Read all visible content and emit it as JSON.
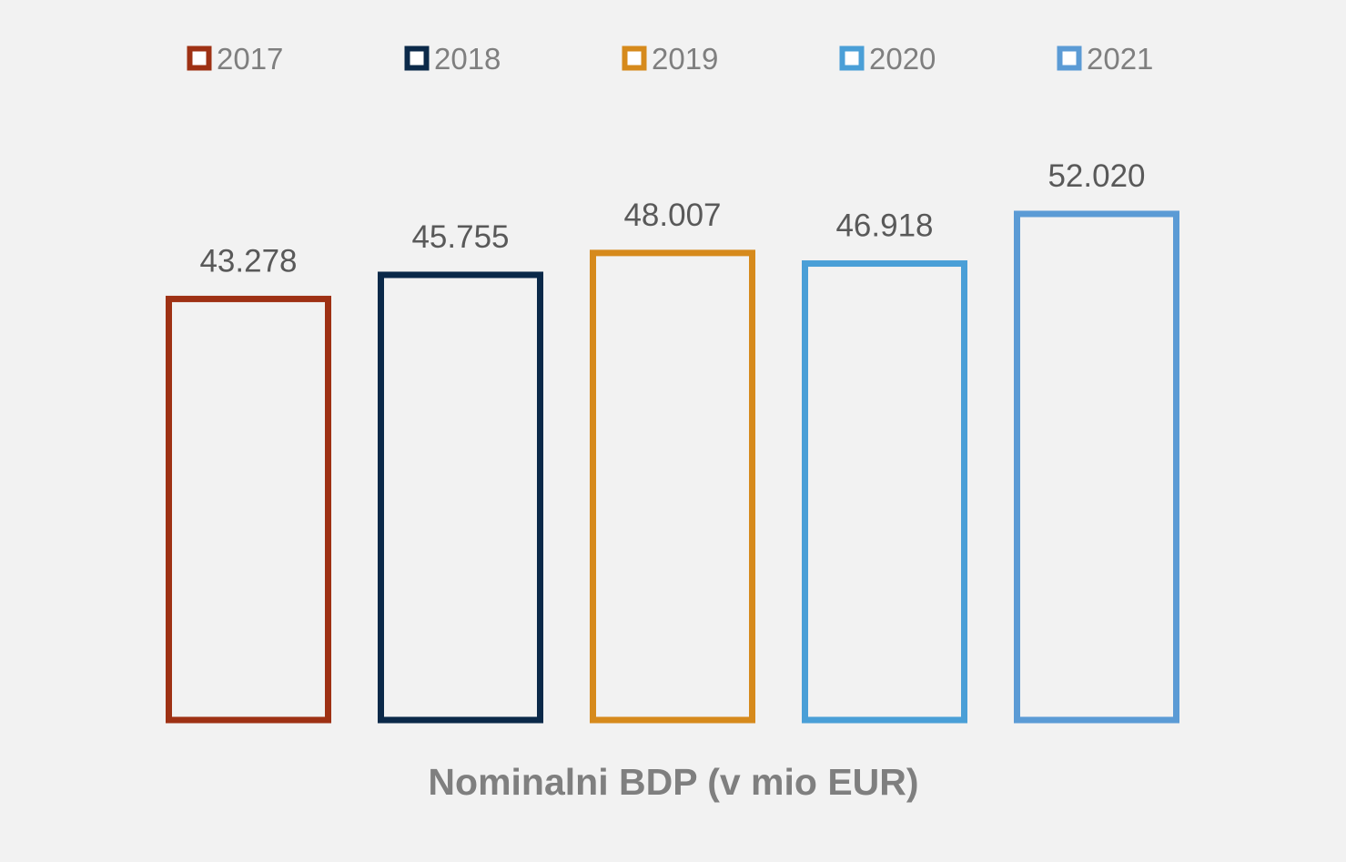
{
  "chart_data": {
    "type": "bar",
    "title": "",
    "xlabel": "Nominalni BDP (v mio EUR)",
    "ylabel": "",
    "categories": [
      "Nominalni BDP (v mio EUR)"
    ],
    "ylim": [
      0,
      52020
    ],
    "grid": false,
    "legend_position": "top",
    "bar_style": "outline",
    "series": [
      {
        "name": "2017",
        "value": 43278,
        "label": "43.278",
        "color": "#9e3114"
      },
      {
        "name": "2018",
        "value": 45755,
        "label": "45.755",
        "color": "#0b2949"
      },
      {
        "name": "2019",
        "value": 48007,
        "label": "48.007",
        "color": "#d68a1c"
      },
      {
        "name": "2020",
        "value": 46918,
        "label": "46.918",
        "color": "#4a9fd7"
      },
      {
        "name": "2021",
        "value": 52020,
        "label": "52.020",
        "color": "#5b9bd5"
      }
    ]
  }
}
